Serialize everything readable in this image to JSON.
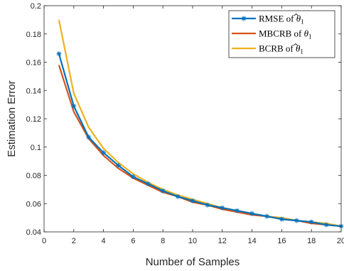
{
  "chart_data": {
    "type": "line",
    "title": "",
    "xlabel": "Number of Samples",
    "ylabel": "Estimation Error",
    "xlim": [
      0,
      20
    ],
    "ylim": [
      0.04,
      0.2
    ],
    "xticks": [
      0,
      2,
      4,
      6,
      8,
      10,
      12,
      14,
      16,
      18,
      20
    ],
    "yticks": [
      0.04,
      0.06,
      0.08,
      0.1,
      0.12,
      0.14,
      0.16,
      0.18,
      0.2
    ],
    "ytick_labels": [
      "0.04",
      "0.06",
      "0.08",
      "0.1",
      "0.12",
      "0.14",
      "0.16",
      "0.18",
      "0.2"
    ],
    "grid": false,
    "legend_position": "top-right",
    "x": [
      1,
      2,
      3,
      4,
      5,
      6,
      7,
      8,
      9,
      10,
      11,
      12,
      13,
      14,
      15,
      16,
      17,
      18,
      19,
      20
    ],
    "series": [
      {
        "name": "RMSE of θ̂1",
        "legend_main": "RMSE of ",
        "legend_symbol": "θ",
        "legend_hat": true,
        "legend_sub": "1",
        "color": "#0072BD",
        "marker": "asterisk",
        "values": [
          0.166,
          0.129,
          0.107,
          0.096,
          0.087,
          0.079,
          0.074,
          0.069,
          0.065,
          0.062,
          0.059,
          0.057,
          0.055,
          0.053,
          0.051,
          0.049,
          0.048,
          0.047,
          0.045,
          0.044
        ]
      },
      {
        "name": "MBCRB of θ1",
        "legend_main": "MBCRB of ",
        "legend_symbol": "θ",
        "legend_hat": false,
        "legend_sub": "1",
        "color": "#D95319",
        "marker": "none",
        "values": [
          0.158,
          0.125,
          0.106,
          0.094,
          0.085,
          0.078,
          0.073,
          0.068,
          0.065,
          0.061,
          0.059,
          0.056,
          0.054,
          0.052,
          0.051,
          0.049,
          0.048,
          0.046,
          0.045,
          0.044
        ]
      },
      {
        "name": "BCRB of θ̂1",
        "legend_main": "BCRB of ",
        "legend_symbol": "θ",
        "legend_hat": true,
        "legend_sub": "1",
        "color": "#EDB120",
        "marker": "none",
        "values": [
          0.19,
          0.138,
          0.114,
          0.099,
          0.089,
          0.081,
          0.075,
          0.07,
          0.066,
          0.063,
          0.06,
          0.057,
          0.055,
          0.053,
          0.051,
          0.05,
          0.048,
          0.047,
          0.046,
          0.044
        ]
      }
    ]
  }
}
